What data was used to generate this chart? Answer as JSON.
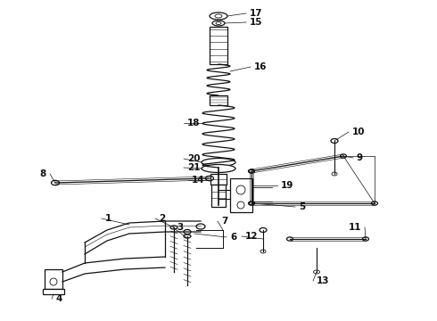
{
  "bg_color": "#ffffff",
  "line_color": "#111111",
  "fig_width": 4.9,
  "fig_height": 3.6,
  "dpi": 100
}
